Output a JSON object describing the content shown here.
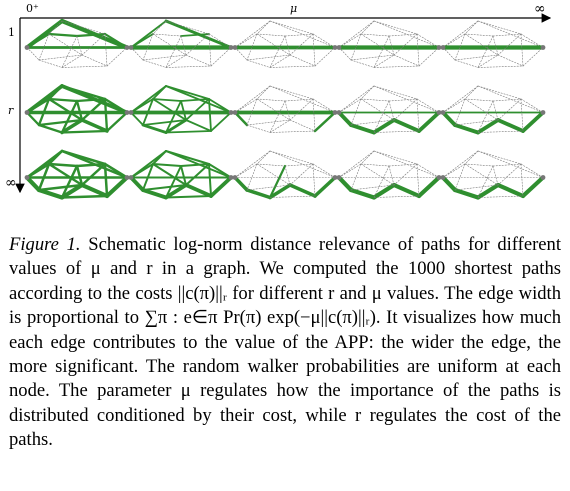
{
  "figure": {
    "axis_top": {
      "left": "0⁺",
      "mid": "μ",
      "right": "∞"
    },
    "axis_left": {
      "top": "1",
      "mid": "r",
      "bottom": "∞"
    },
    "grid": {
      "rows": 3,
      "cols": 5
    },
    "edge_color": "#2f8f2f",
    "edge_light_color": "#7a7a7a"
  },
  "caption": {
    "label": "Figure 1.",
    "text": "Schematic log-norm distance relevance of paths for different values of μ and r in a graph. We computed the 1000 shortest paths according to the costs ||c(π)||ᵣ for different r and μ values. The edge width is proportional to ∑π : e∈π Pr(π) exp(−μ||c(π)||ᵣ). It visualizes how much each edge contributes to the value of the APP: the wider the edge, the more significant. The random walker probabilities are uniform at each node. The parameter μ regulates how the importance of the paths is distributed conditioned by their cost, while r regulates the cost of the paths."
  }
}
